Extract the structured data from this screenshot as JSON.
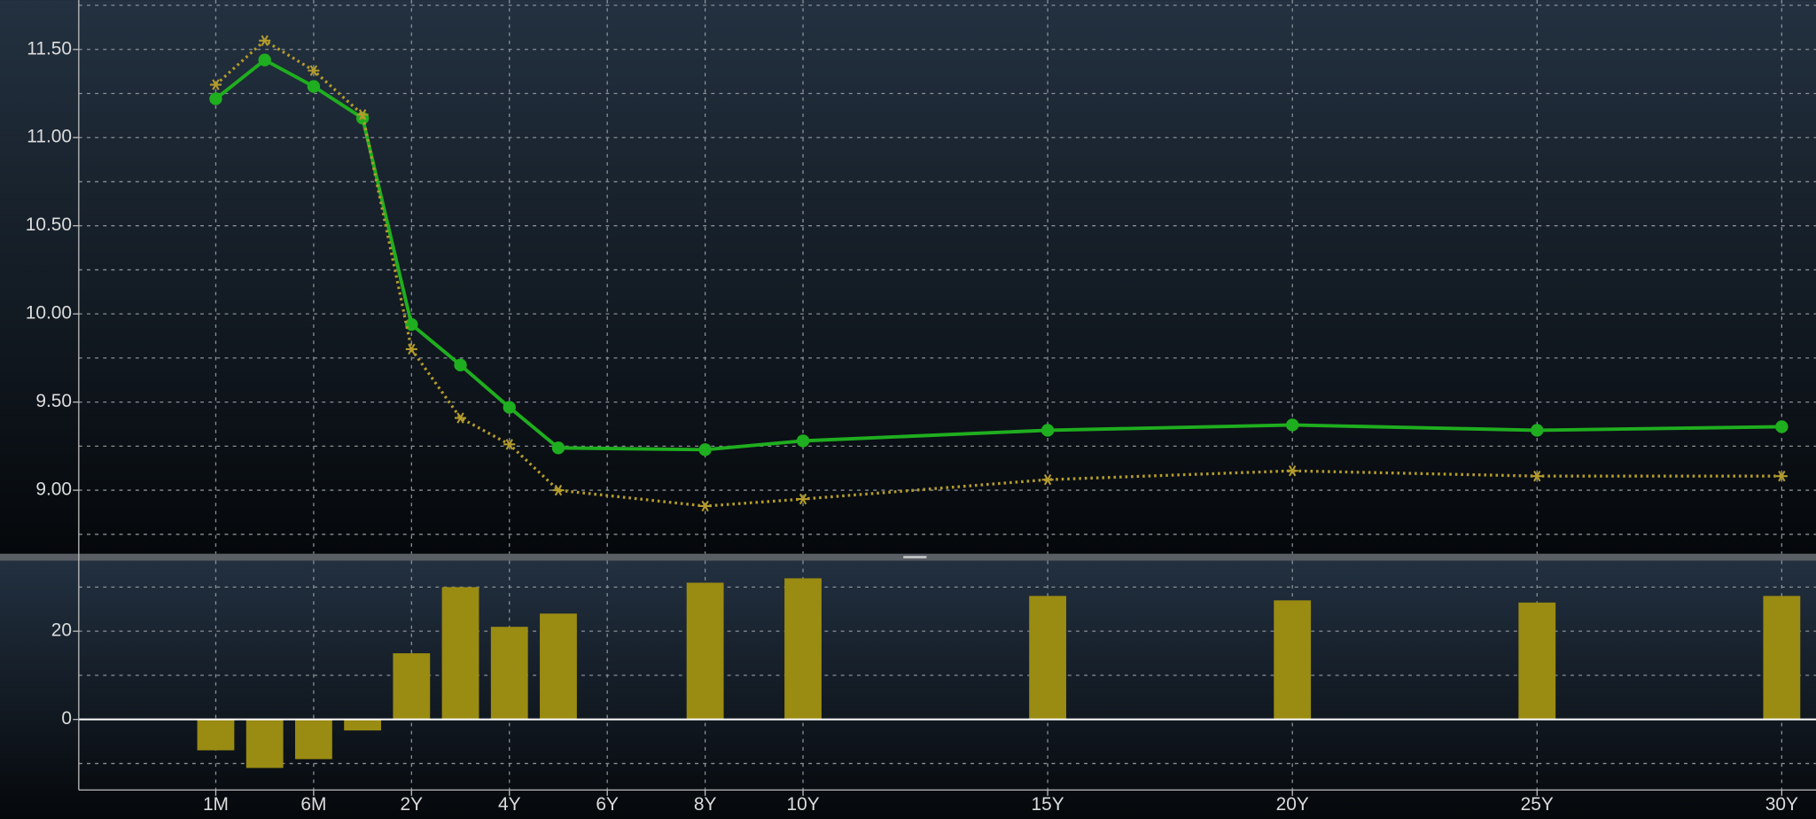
{
  "chart_data": [
    {
      "type": "line",
      "x": [
        -2,
        -1,
        0,
        1,
        2,
        3,
        4,
        5,
        8,
        10,
        15,
        20,
        25,
        30
      ],
      "xlim": [
        -4.8,
        30.7
      ],
      "ylim": [
        8.64,
        11.78
      ],
      "yticks": [
        {
          "value": 9,
          "label": "9.00"
        },
        {
          "value": 9.5,
          "label": "9.50"
        },
        {
          "value": 10,
          "label": "10.00"
        },
        {
          "value": 10.5,
          "label": "10.50"
        },
        {
          "value": 11,
          "label": "11.00"
        },
        {
          "value": 11.5,
          "label": "11.50"
        }
      ],
      "yminor": [
        8.75,
        9.25,
        9.75,
        10.25,
        10.75,
        11.25,
        11.75
      ],
      "grid": true,
      "series": [
        {
          "color": "#1fae1f",
          "marker": "circle",
          "line_style": "solid",
          "values": [
            11.22,
            11.44,
            11.29,
            11.11,
            9.94,
            9.71,
            9.47,
            9.24,
            9.23,
            9.28,
            9.34,
            9.37,
            9.34,
            9.36
          ]
        },
        {
          "color": "#b39b2c",
          "marker": "star",
          "line_style": "dotted",
          "values": [
            11.3,
            11.55,
            11.38,
            11.13,
            9.8,
            9.41,
            9.26,
            9.0,
            8.91,
            8.95,
            9.06,
            9.11,
            9.08,
            9.08
          ]
        }
      ]
    },
    {
      "type": "bar",
      "x": [
        -2,
        -1,
        0,
        1,
        2,
        3,
        4,
        5,
        8,
        10,
        15,
        20,
        25,
        30
      ],
      "xlim": [
        -4.8,
        30.7
      ],
      "ylim": [
        -16,
        36
      ],
      "yticks": [
        0,
        20
      ],
      "yminor": [
        -10,
        10,
        30
      ],
      "grid": true,
      "xticks": [
        {
          "value": -2,
          "label": "1M"
        },
        {
          "value": 0,
          "label": "6M"
        },
        {
          "value": 2,
          "label": "2Y"
        },
        {
          "value": 4,
          "label": "4Y"
        },
        {
          "value": 6,
          "label": "6Y"
        },
        {
          "value": 8,
          "label": "8Y"
        },
        {
          "value": 10,
          "label": "10Y"
        },
        {
          "value": 15,
          "label": "15Y"
        },
        {
          "value": 20,
          "label": "20Y"
        },
        {
          "value": 25,
          "label": "25Y"
        },
        {
          "value": 30,
          "label": "30Y"
        }
      ],
      "color": "#9a8b12",
      "values": [
        -7,
        -11,
        -9,
        -2.5,
        15,
        30,
        21,
        24,
        31,
        32,
        28,
        27,
        26.5,
        28
      ]
    }
  ]
}
